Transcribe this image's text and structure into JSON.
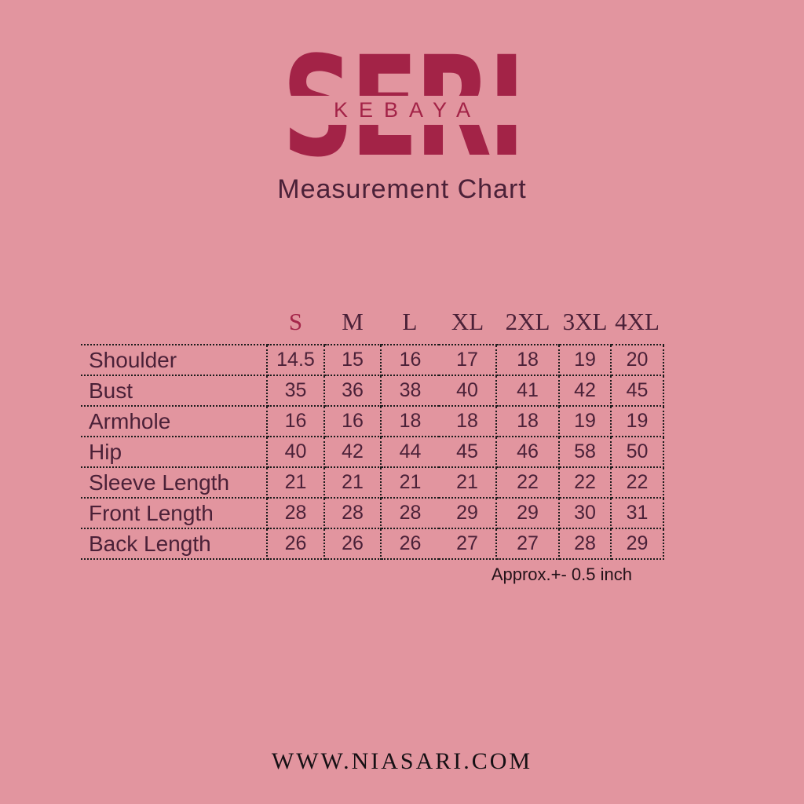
{
  "logo": {
    "wordmark": "SERI",
    "subtext": "KEBAYA"
  },
  "title": "Measurement Chart",
  "chart_data": {
    "type": "table",
    "title": "Measurement Chart",
    "columns": [
      "S",
      "M",
      "L",
      "XL",
      "2XL",
      "3XL",
      "4XL"
    ],
    "rows": [
      {
        "label": "Shoulder",
        "values": [
          "14.5",
          "15",
          "16",
          "17",
          "18",
          "19",
          "20"
        ]
      },
      {
        "label": "Bust",
        "values": [
          "35",
          "36",
          "38",
          "40",
          "41",
          "42",
          "45"
        ]
      },
      {
        "label": "Armhole",
        "values": [
          "16",
          "16",
          "18",
          "18",
          "18",
          "19",
          "19"
        ]
      },
      {
        "label": "Hip",
        "values": [
          "40",
          "42",
          "44",
          "45",
          "46",
          "58",
          "50"
        ]
      },
      {
        "label": "Sleeve Length",
        "values": [
          "21",
          "21",
          "21",
          "21",
          "22",
          "22",
          "22"
        ]
      },
      {
        "label": "Front Length",
        "values": [
          "28",
          "28",
          "28",
          "29",
          "29",
          "30",
          "31"
        ]
      },
      {
        "label": "Back Length",
        "values": [
          "26",
          "26",
          "26",
          "27",
          "27",
          "28",
          "29"
        ]
      }
    ],
    "note": "Approx.+- 0.5 inch",
    "layout_hints": {
      "grid": "dotted",
      "missing_vertical_rule_between": [
        "L",
        "XL"
      ],
      "highlighted_column": "S"
    }
  },
  "footer": {
    "website": "WWW.NIASARI.COM"
  },
  "colors": {
    "background": "#e2959f",
    "brand": "#a32347",
    "accent_size_s": "#a5264a",
    "table_text": "#4b2138",
    "grid_dots": "#1b1b1b",
    "note_text": "#241219",
    "footer_text": "#161014"
  }
}
